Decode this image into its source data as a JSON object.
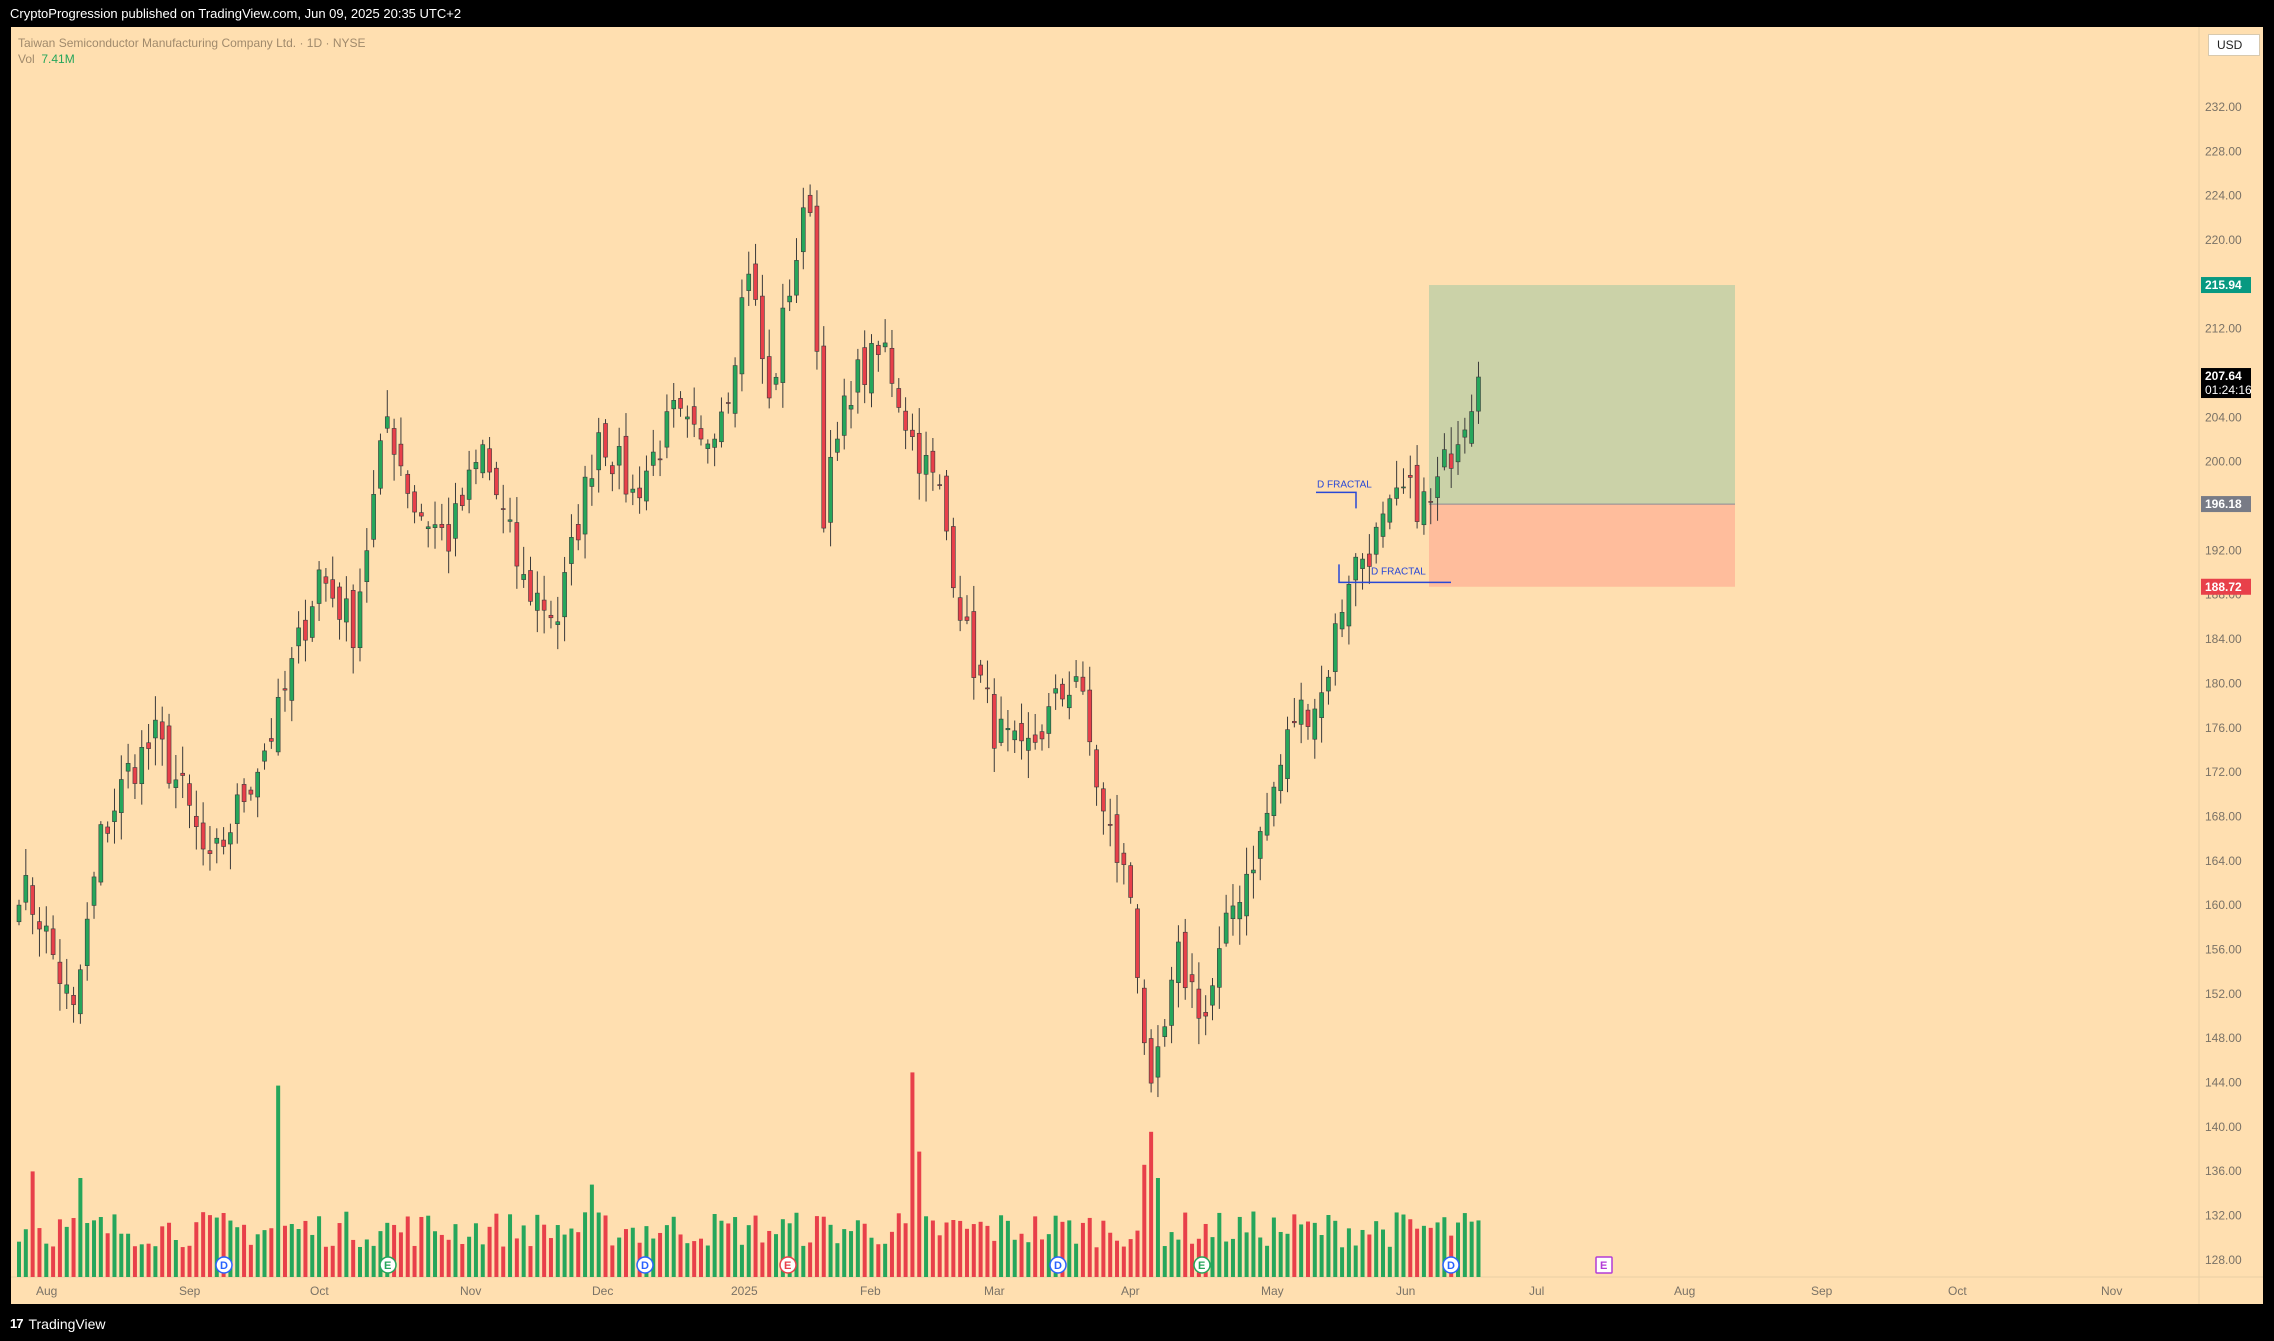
{
  "header": {
    "published": "CryptoProgression published on TradingView.com, Jun 09, 2025 20:35 UTC+2"
  },
  "footer": {
    "brand": "TradingView",
    "brand_mark": "17"
  },
  "legend": {
    "symbol_line": "Taiwan Semiconductor Manufacturing Company Ltd. · 1D · NYSE",
    "vol_label": "Vol",
    "vol_value": "7.41M"
  },
  "currency": "USD",
  "colors": {
    "background": "#ffdfb0",
    "up": "#26a65b",
    "down": "#e8404a",
    "profit_zone": "#cbd2a8",
    "loss_zone": "#ffbd9c",
    "fractal": "#2948d6"
  },
  "chart_data": {
    "type": "candlestick",
    "y_axis": {
      "ticks": [
        "232.00",
        "228.00",
        "224.00",
        "220.00",
        "216.00",
        "212.00",
        "208.00",
        "204.00",
        "200.00",
        "196.00",
        "192.00",
        "188.00",
        "184.00",
        "180.00",
        "176.00",
        "172.00",
        "168.00",
        "164.00",
        "160.00",
        "156.00",
        "152.00",
        "148.00",
        "144.00",
        "140.00",
        "136.00",
        "132.00",
        "128.00"
      ],
      "ylim": [
        125.6,
        234.6
      ]
    },
    "x_axis": {
      "labels": [
        "Aug",
        "Sep",
        "Oct",
        "Nov",
        "Dec",
        "2025",
        "Feb",
        "Mar",
        "Apr",
        "May",
        "Jun",
        "Jul",
        "Aug",
        "Sep",
        "Oct",
        "Nov"
      ]
    },
    "price_labels": [
      {
        "text": "215.94",
        "value": 215.94,
        "color": "#089981"
      },
      {
        "text": "207.64",
        "subtext": "01:24:16",
        "value": 207.64,
        "color": "#000000"
      },
      {
        "text": "196.18",
        "value": 196.18,
        "color": "#787b86"
      },
      {
        "text": "188.72",
        "value": 188.72,
        "color": "#e8404a"
      }
    ],
    "position": {
      "type": "long",
      "entry": 196.18,
      "target": 215.94,
      "stop": 188.72
    },
    "annotations": [
      {
        "text": "D FRACTAL",
        "price": 197.6,
        "kind": "high"
      },
      {
        "text": "D FRACTAL",
        "price": 189.3,
        "kind": "low"
      }
    ],
    "event_markers": [
      "D",
      "E",
      "D",
      "E",
      "D",
      "E",
      "D",
      "E"
    ],
    "anchors": [
      {
        "i": 0,
        "price": 162
      },
      {
        "i": 3,
        "price": 159
      },
      {
        "i": 8,
        "price": 150
      },
      {
        "i": 12,
        "price": 166
      },
      {
        "i": 16,
        "price": 172
      },
      {
        "i": 20,
        "price": 175
      },
      {
        "i": 24,
        "price": 170
      },
      {
        "i": 28,
        "price": 163
      },
      {
        "i": 33,
        "price": 170
      },
      {
        "i": 38,
        "price": 177
      },
      {
        "i": 44,
        "price": 190
      },
      {
        "i": 49,
        "price": 185
      },
      {
        "i": 54,
        "price": 204
      },
      {
        "i": 58,
        "price": 196
      },
      {
        "i": 63,
        "price": 193
      },
      {
        "i": 68,
        "price": 201
      },
      {
        "i": 74,
        "price": 189
      },
      {
        "i": 79,
        "price": 186
      },
      {
        "i": 85,
        "price": 203
      },
      {
        "i": 90,
        "price": 197
      },
      {
        "i": 96,
        "price": 204
      },
      {
        "i": 100,
        "price": 201
      },
      {
        "i": 104,
        "price": 207
      },
      {
        "i": 107,
        "price": 218
      },
      {
        "i": 110,
        "price": 205
      },
      {
        "i": 113,
        "price": 216
      },
      {
        "i": 116,
        "price": 224
      },
      {
        "i": 118,
        "price": 196
      },
      {
        "i": 122,
        "price": 207
      },
      {
        "i": 127,
        "price": 210
      },
      {
        "i": 131,
        "price": 202
      },
      {
        "i": 135,
        "price": 197
      },
      {
        "i": 139,
        "price": 184
      },
      {
        "i": 143,
        "price": 176
      },
      {
        "i": 147,
        "price": 173
      },
      {
        "i": 151,
        "price": 177
      },
      {
        "i": 155,
        "price": 181
      },
      {
        "i": 159,
        "price": 168
      },
      {
        "i": 163,
        "price": 161
      },
      {
        "i": 166,
        "price": 142
      },
      {
        "i": 170,
        "price": 155
      },
      {
        "i": 174,
        "price": 150
      },
      {
        "i": 178,
        "price": 160
      },
      {
        "i": 182,
        "price": 166
      },
      {
        "i": 187,
        "price": 177
      },
      {
        "i": 191,
        "price": 179
      },
      {
        "i": 195,
        "price": 190
      },
      {
        "i": 199,
        "price": 193
      },
      {
        "i": 203,
        "price": 197
      },
      {
        "i": 207,
        "price": 196
      },
      {
        "i": 211,
        "price": 203
      },
      {
        "i": 214,
        "price": 207.64
      }
    ]
  }
}
